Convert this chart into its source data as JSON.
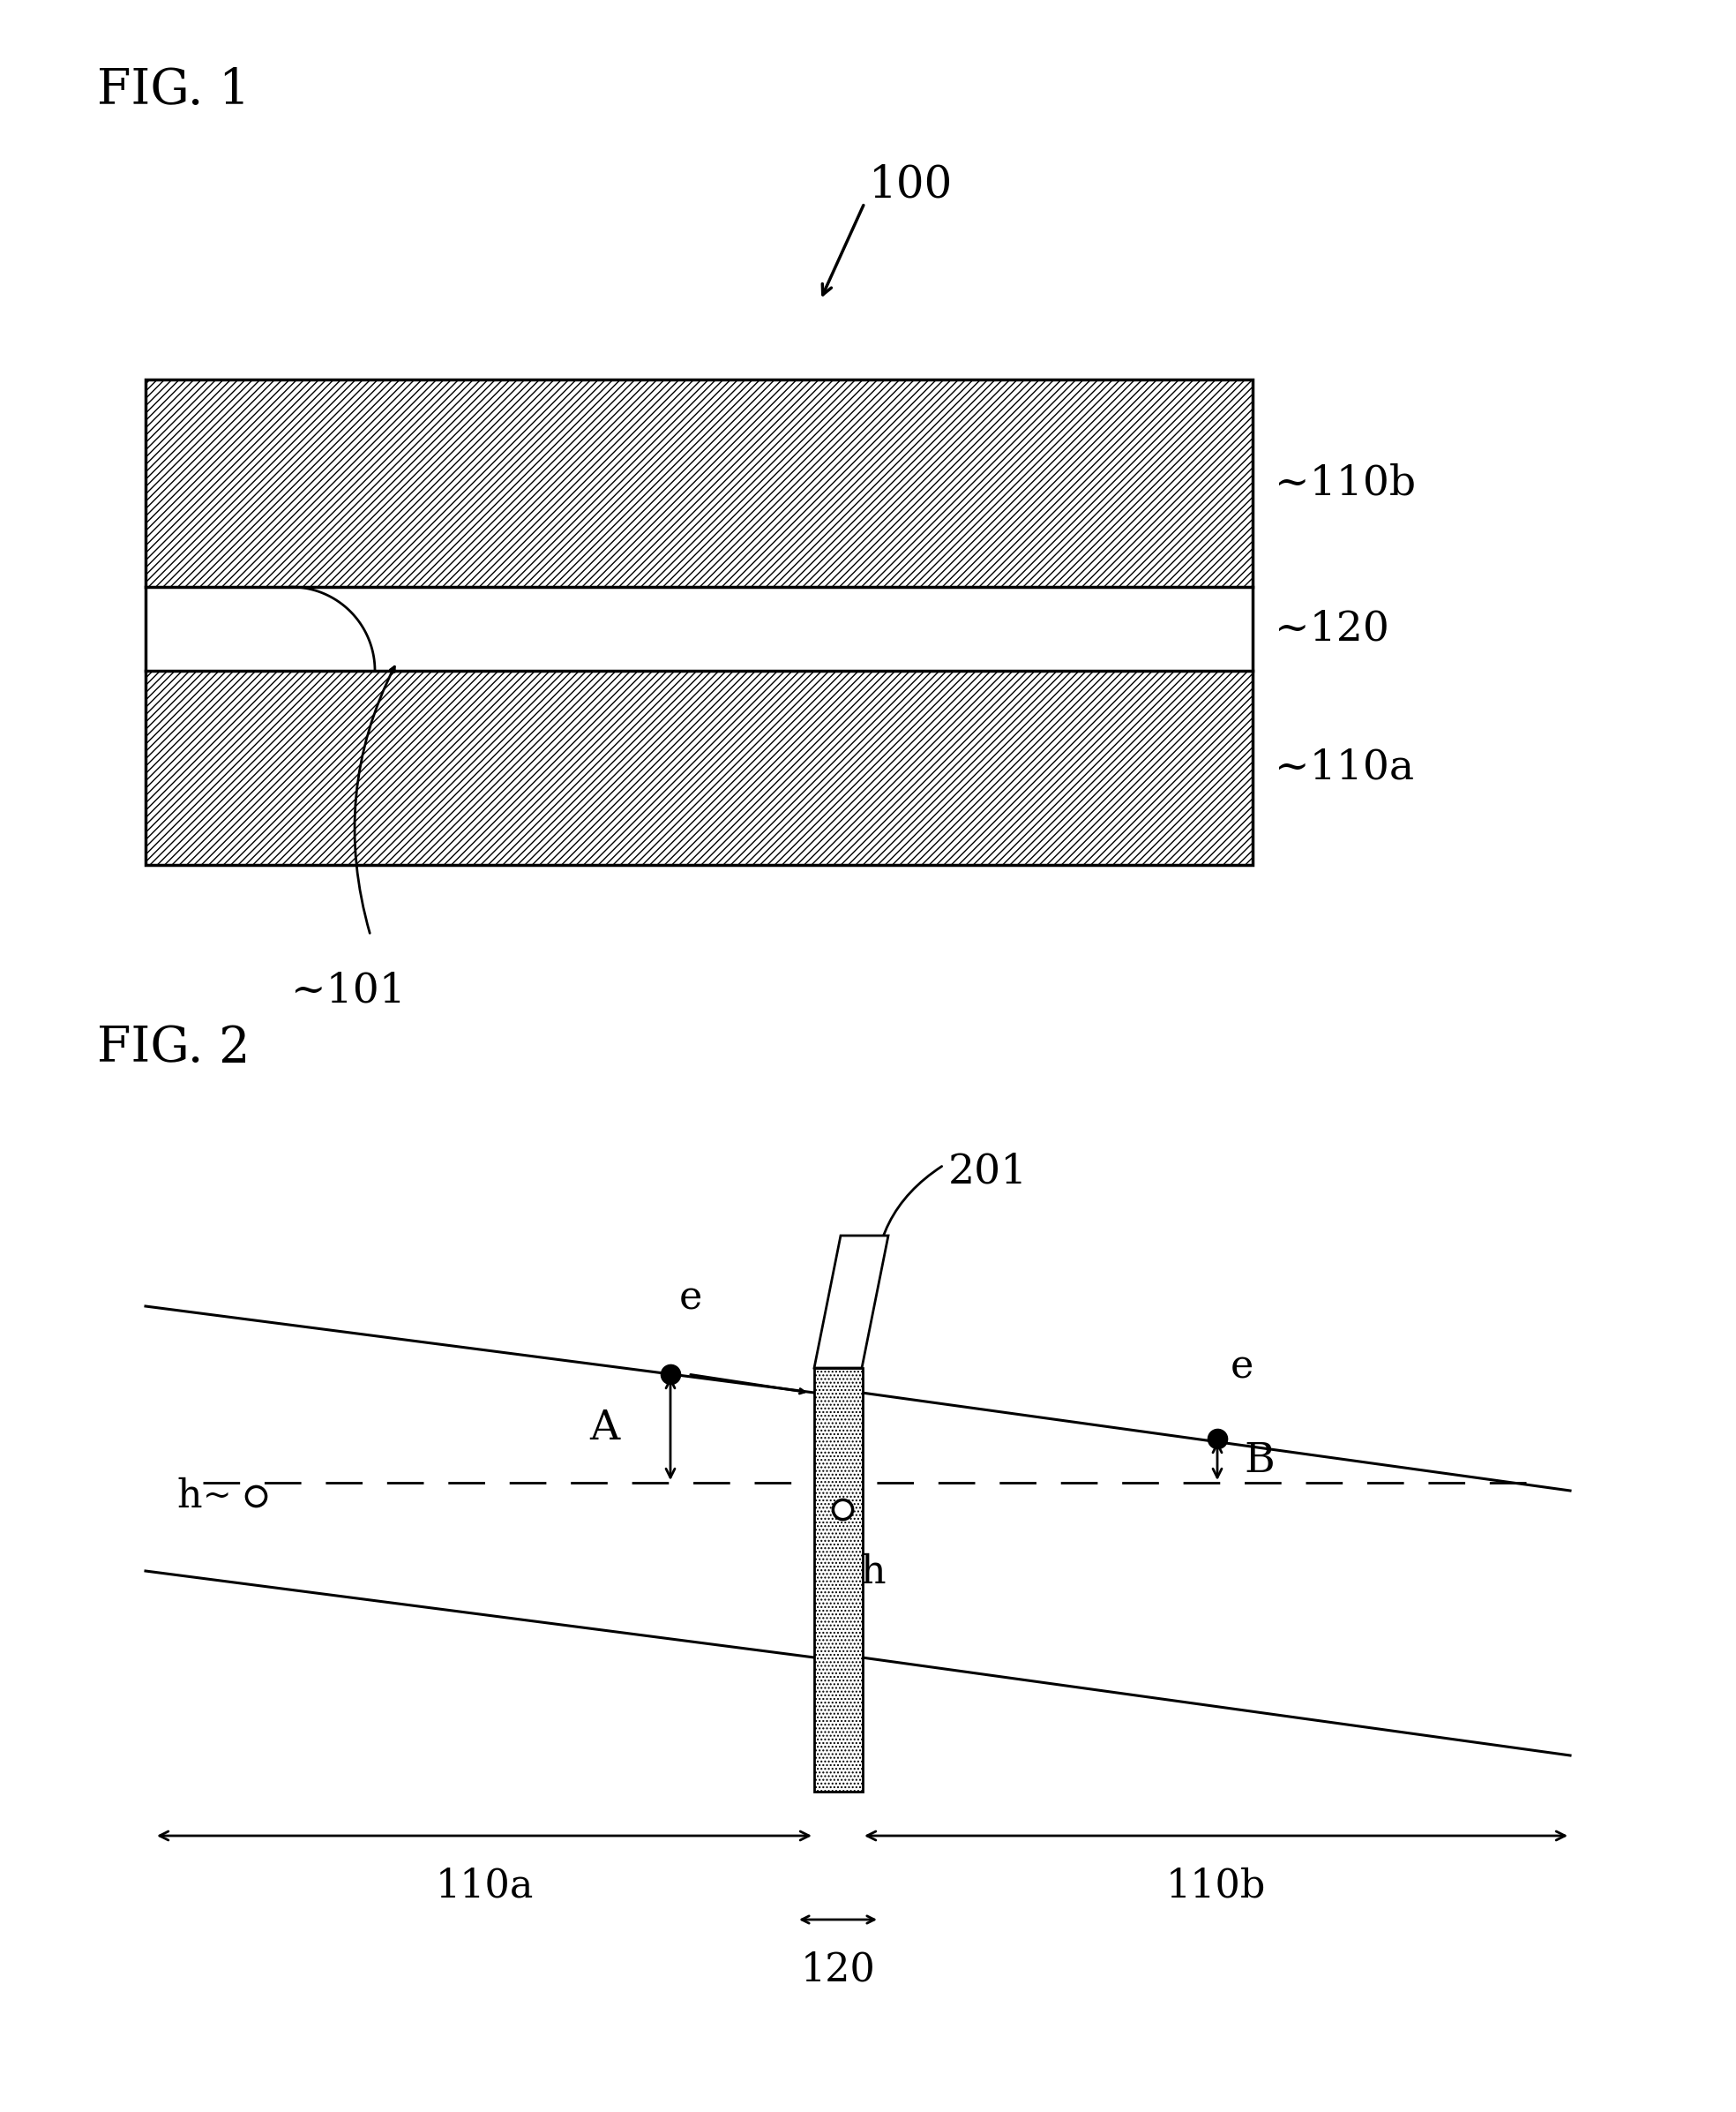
{
  "bg_color": "#ffffff",
  "fig1": {
    "title": "FIG. 1",
    "label_100": "100",
    "label_110b": "110b",
    "label_120": "120",
    "label_110a": "110a",
    "label_101": "101"
  },
  "fig2": {
    "title": "FIG. 2",
    "label_201": "201",
    "label_110a": "110a",
    "label_110b": "110b",
    "label_120": "120",
    "label_A": "A",
    "label_B": "B",
    "label_e1": "e",
    "label_e2": "e",
    "label_h1": "h",
    "label_h2": "h"
  }
}
